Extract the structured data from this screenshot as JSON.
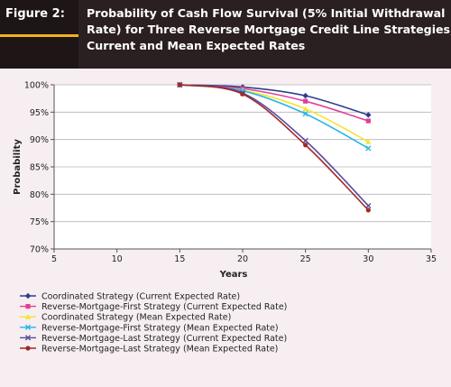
{
  "figure_label": "Figure 2:",
  "title_lines": [
    "Probability of Cash Flow Survival (5% Initial Withdrawal",
    "Rate) for Three Reverse Mortgage Credit Line Strategies,",
    "Current and Mean Expected Rates"
  ],
  "colors": {
    "header_bg": "#2a1f21",
    "accent": "#f2b21d",
    "plot_bg": "#ffffff",
    "page_bg": "#f6eef0"
  },
  "chart_data": {
    "type": "line",
    "title": "Probability of Cash Flow Survival (5% Initial Withdrawal Rate) for Three Reverse Mortgage Credit Line Strategies, Current and Mean Expected Rates",
    "xlabel": "Years",
    "ylabel": "Probability",
    "xlim": [
      5,
      35
    ],
    "ylim": [
      70,
      100
    ],
    "x_ticks": [
      5,
      10,
      15,
      20,
      25,
      30,
      35
    ],
    "y_ticks": [
      70,
      75,
      80,
      85,
      90,
      95,
      100
    ],
    "y_tick_labels": [
      "70%",
      "75%",
      "80%",
      "85%",
      "90%",
      "95%",
      "100%"
    ],
    "grid": true,
    "legend": "bottom",
    "x": [
      15,
      20,
      25,
      30
    ],
    "series": [
      {
        "name": "Coordinated Strategy (Current Expected Rate)",
        "color": "#2e3d8f",
        "marker": "diamond",
        "values": [
          100,
          99.6,
          98.0,
          94.5
        ]
      },
      {
        "name": "Reverse-Mortgage-First Strategy (Current Expected Rate)",
        "color": "#e0409a",
        "marker": "square",
        "values": [
          100,
          99.3,
          97.0,
          93.4
        ]
      },
      {
        "name": "Coordinated Strategy (Mean Expected Rate)",
        "color": "#f2e52e",
        "marker": "triangle",
        "values": [
          100,
          99.0,
          95.6,
          89.6
        ]
      },
      {
        "name": "Reverse-Mortgage-First Strategy (Mean Expected Rate)",
        "color": "#29b5e6",
        "marker": "x",
        "values": [
          100,
          98.9,
          94.7,
          88.4
        ]
      },
      {
        "name": "Reverse-Mortgage-Last Strategy (Current Expected Rate)",
        "color": "#5b4a9e",
        "marker": "x",
        "values": [
          100,
          98.5,
          89.8,
          77.9
        ]
      },
      {
        "name": "Reverse-Mortgage-Last Strategy (Mean Expected Rate)",
        "color": "#9e2a2a",
        "marker": "circle",
        "values": [
          100,
          98.3,
          89.0,
          77.1
        ]
      }
    ]
  }
}
